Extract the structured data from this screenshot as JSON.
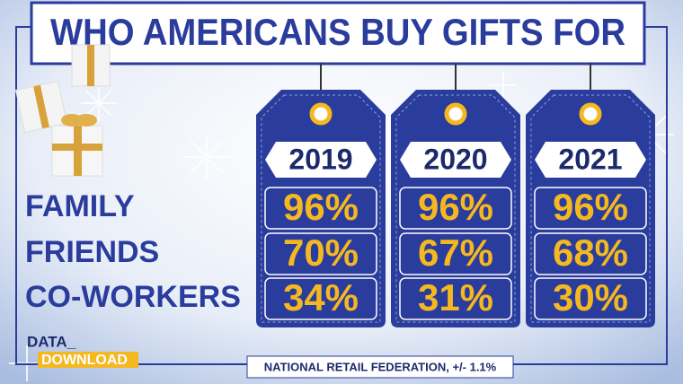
{
  "header": {
    "title": "WHO AMERICANS BUY GIFTS FOR"
  },
  "table": {
    "columns": [
      "2019",
      "2020",
      "2021"
    ],
    "rows": [
      {
        "label": "FAMILY",
        "cells": [
          "96%",
          "96%",
          "96%"
        ]
      },
      {
        "label": "FRIENDS",
        "cells": [
          "70%",
          "67%",
          "68%"
        ]
      },
      {
        "label": "CO-WORKERS",
        "cells": [
          "34%",
          "31%",
          "30%"
        ]
      }
    ]
  },
  "logo": {
    "line1": "DATA_",
    "line2": "DOWNLOAD"
  },
  "source": "NATIONAL RETAIL FEDERATION, +/- 1.1%"
}
